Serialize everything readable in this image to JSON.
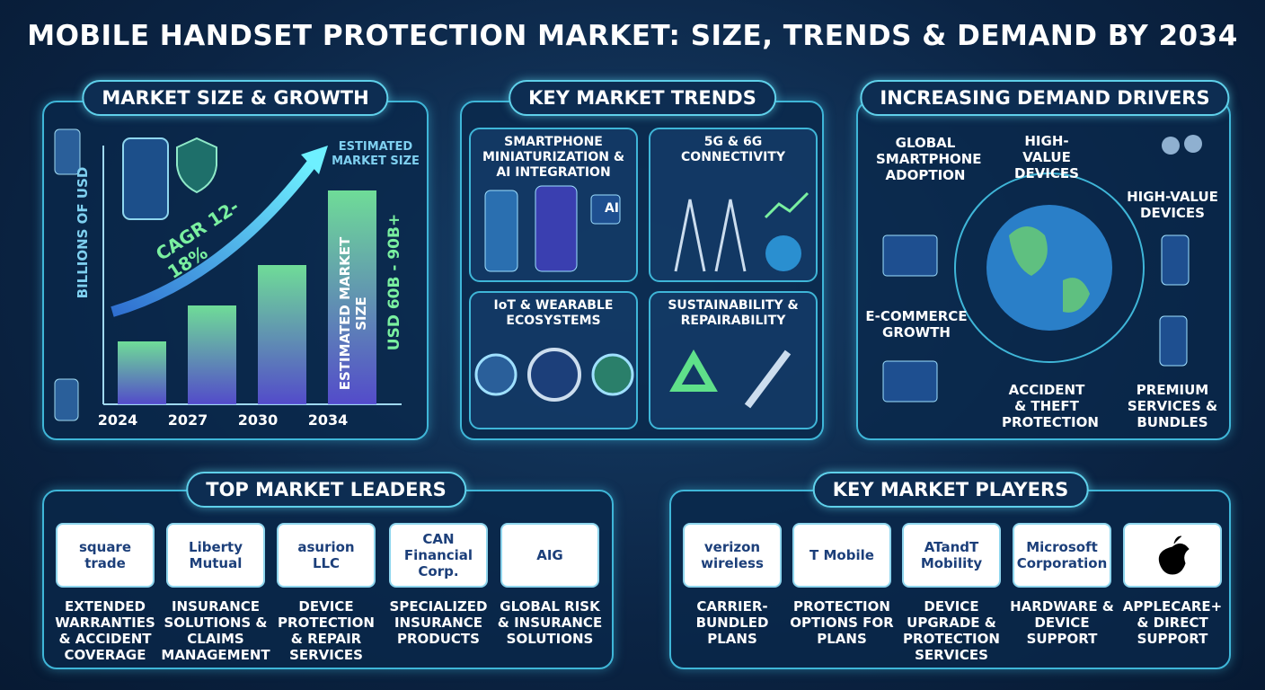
{
  "title": "MOBILE HANDSET PROTECTION MARKET: SIZE, TRENDS & DEMAND BY 2034",
  "market_size": {
    "title": "MARKET SIZE & GROWTH",
    "axis_label": "BILLIONS OF USD",
    "cagr": "CAGR 12-18%",
    "estimate_note": "ESTIMATED MARKET SIZE",
    "bar_label": "ESTIMATED MARKET SIZE",
    "range": "USD 60B - 90B+",
    "years": [
      "2024",
      "2027",
      "2030",
      "2034"
    ]
  },
  "trends": {
    "title": "KEY MARKET TRENDS",
    "items": [
      "SMARTPHONE MINIATURIZATION & AI INTEGRATION",
      "5G & 6G CONNECTIVITY",
      "IoT & WEARABLE ECOSYSTEMS",
      "SUSTAINABILITY & REPAIRABILITY"
    ],
    "ai_badge": "AI"
  },
  "drivers": {
    "title": "INCREASING DEMAND DRIVERS",
    "items": [
      "GLOBAL SMARTPHONE ADOPTION",
      "HIGH-VALUE DEVICES",
      "HIGH-VALUE DEVICES",
      "E-COMMERCE GROWTH",
      "ACCIDENT & THEFT PROTECTION",
      "PREMIUM SERVICES & BUNDLES"
    ]
  },
  "leaders": {
    "title": "TOP MARKET LEADERS",
    "items": [
      {
        "logo": "square trade",
        "desc": "EXTENDED WARRANTIES & ACCIDENT COVERAGE"
      },
      {
        "logo": "Liberty Mutual",
        "desc": "INSURANCE SOLUTIONS & CLAIMS MANAGEMENT"
      },
      {
        "logo": "asurion LLC",
        "desc": "DEVICE PROTECTION & REPAIR SERVICES"
      },
      {
        "logo": "CAN Financial Corp.",
        "desc": "SPECIALIZED INSURANCE PRODUCTS"
      },
      {
        "logo": "AIG",
        "desc": "GLOBAL RISK & INSURANCE SOLUTIONS"
      }
    ]
  },
  "players": {
    "title": "KEY MARKET PLAYERS",
    "items": [
      {
        "logo": "verizon wireless",
        "desc": "CARRIER-BUNDLED PLANS"
      },
      {
        "logo": "T Mobile",
        "desc": "PROTECTION OPTIONS FOR PLANS"
      },
      {
        "logo": "ATandT Mobility",
        "desc": "DEVICE UPGRADE & PROTECTION SERVICES"
      },
      {
        "logo": "Microsoft Corporation",
        "desc": "HARDWARE & DEVICE SUPPORT"
      },
      {
        "logo": null,
        "desc": "APPLECARE+ & DIRECT SUPPORT"
      }
    ]
  }
}
